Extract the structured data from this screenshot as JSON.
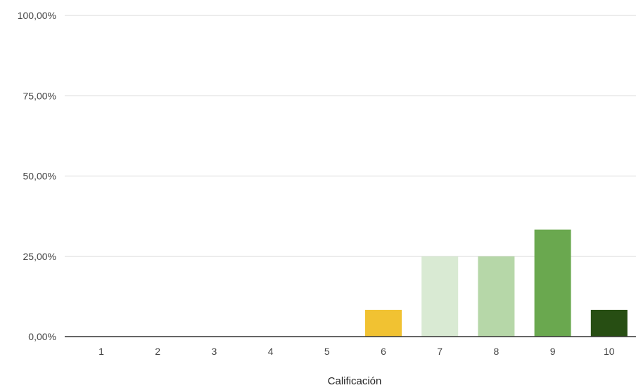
{
  "chart_data": {
    "type": "bar",
    "title": "",
    "xlabel": "Calificación",
    "ylabel": "",
    "categories": [
      "1",
      "2",
      "3",
      "4",
      "5",
      "6",
      "7",
      "8",
      "9",
      "10"
    ],
    "values": [
      0,
      0,
      0,
      0,
      0,
      8.33,
      25,
      25,
      33.33,
      8.33
    ],
    "bar_colors": [
      "#cccccc",
      "#cccccc",
      "#cccccc",
      "#cccccc",
      "#cccccc",
      "#f1c232",
      "#d9ead3",
      "#b6d7a8",
      "#6aa84f",
      "#274e13"
    ],
    "ylim": [
      0,
      100
    ],
    "yticks": [
      0,
      25,
      50,
      75,
      100
    ],
    "ytick_labels": [
      "0,00%",
      "25,00%",
      "50,00%",
      "75,00%",
      "100,00%"
    ],
    "grid": true,
    "legend": "none"
  }
}
